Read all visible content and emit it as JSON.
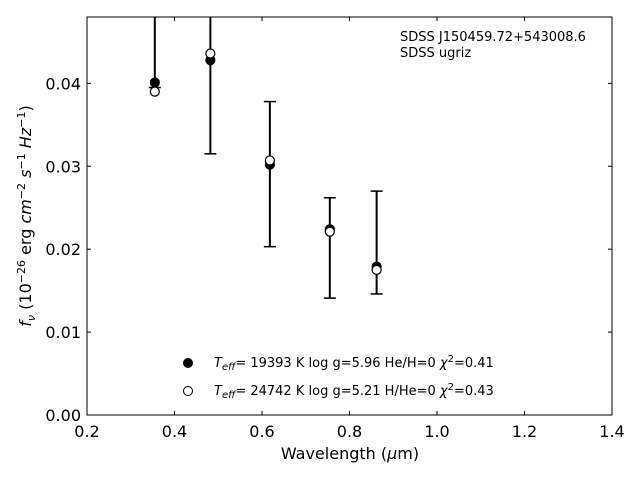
{
  "chart_data": {
    "type": "scatter",
    "xlabel": "Wavelength (μm)",
    "ylabel": "f_ν (10^-26 erg cm^-2 s^-1 Hz^-1)",
    "xlim": [
      0.2,
      1.4
    ],
    "ylim": [
      0.0,
      0.048
    ],
    "xticks": [
      "0.2",
      "0.4",
      "0.6",
      "0.8",
      "1.0",
      "1.2",
      "1.4"
    ],
    "yticks": [
      "0.00",
      "0.01",
      "0.02",
      "0.03",
      "0.04"
    ],
    "grid": false,
    "legend_position": "bottom-center",
    "annotations": [
      "SDSS J150459.72+543008.6",
      "SDSS ugriz"
    ],
    "observed": {
      "x": [
        0.355,
        0.482,
        0.618,
        0.755,
        0.862
      ],
      "lower": [
        0.0395,
        0.0315,
        0.0203,
        0.0141,
        0.0146
      ],
      "upper": [
        0.048,
        0.048,
        0.0378,
        0.0262,
        0.027
      ]
    },
    "series": [
      {
        "name": "T_eff= 19393 K  log g=5.96  He/H=0  χ²=0.41",
        "marker": "filled-circle",
        "x": [
          0.355,
          0.482,
          0.618,
          0.755,
          0.862
        ],
        "y": [
          0.0401,
          0.0428,
          0.0302,
          0.0224,
          0.0179
        ]
      },
      {
        "name": "T_eff= 24742 K  log g=5.21  H/He=0  χ²=0.43",
        "marker": "open-circle",
        "x": [
          0.355,
          0.482,
          0.618,
          0.755,
          0.862
        ],
        "y": [
          0.039,
          0.0436,
          0.0307,
          0.0221,
          0.0175
        ]
      }
    ]
  }
}
